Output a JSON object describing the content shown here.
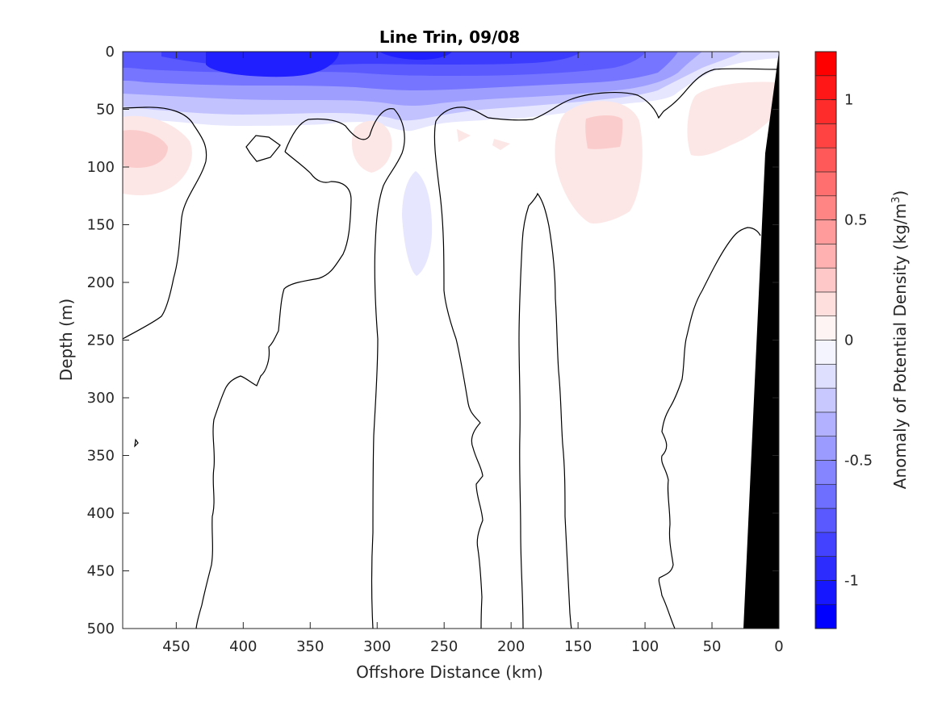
{
  "chart_data": {
    "type": "heatmap",
    "subtype": "filled-contour-section",
    "title": "Line Trin, 09/08",
    "xlabel": "Offshore Distance (km)",
    "ylabel": "Depth (m)",
    "xlim": [
      490,
      0
    ],
    "x_reversed": true,
    "ylim": [
      0,
      500
    ],
    "y_reversed": true,
    "x_ticks": [
      450,
      400,
      350,
      300,
      250,
      200,
      150,
      100,
      50,
      0
    ],
    "y_ticks": [
      0,
      50,
      100,
      150,
      200,
      250,
      300,
      350,
      400,
      450,
      500
    ],
    "colorbar": {
      "label": "Anomaly of Potential Density (kg/m³)",
      "label_text": "Anomaly of Potential Density (kg/m",
      "label_sup": "3",
      "label_close": ")",
      "range": [
        -1.2,
        1.2
      ],
      "step": 0.1,
      "ticks": [
        -1,
        -0.5,
        0,
        0.5,
        1
      ],
      "tick_labels": [
        "-1",
        "-0.5",
        "0",
        "0.5",
        "1"
      ],
      "negative_color": "#0000ff",
      "positive_color": "#ff0000",
      "zero_color": "#ffffff"
    },
    "bottom_fill_color": "#000000",
    "features": [
      {
        "name": "surface negative anomaly layer",
        "x_range": [
          490,
          30
        ],
        "depth_range": [
          0,
          60
        ],
        "min_value": -1.0
      },
      {
        "name": "core negative anomaly",
        "x_center": 380,
        "depth_center": 12,
        "value": -1.0
      },
      {
        "name": "subsurface negative patch",
        "x_center": 270,
        "depth_center": 140,
        "value": -0.1
      },
      {
        "name": "positive patch",
        "x_center": 475,
        "depth_center": 85,
        "value": 0.2
      },
      {
        "name": "positive patch",
        "x_center": 305,
        "depth_center": 80,
        "value": 0.1
      },
      {
        "name": "positive patch",
        "x_center": 135,
        "depth_center": 85,
        "value": 0.2
      },
      {
        "name": "positive patch",
        "x_center": 50,
        "depth_center": 75,
        "value": 0.1
      },
      {
        "name": "bottom topography",
        "x_range": [
          30,
          0
        ],
        "depth_range": [
          5,
          500
        ]
      }
    ],
    "grid": false,
    "legend": "colorbar-right"
  }
}
